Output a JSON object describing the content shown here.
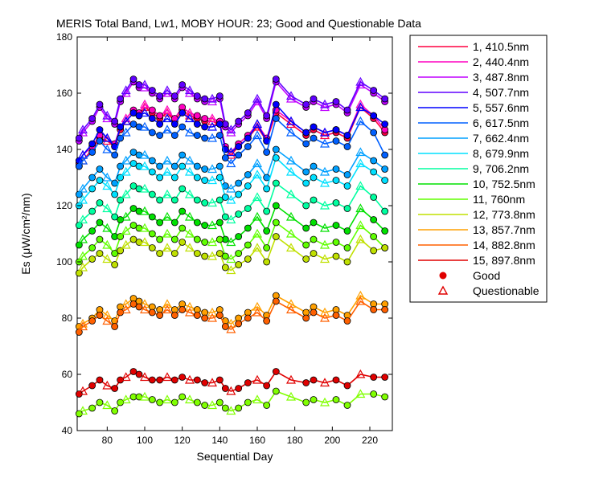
{
  "chart_data": {
    "type": "line",
    "title": "MERIS Total Band,  Lw1, MOBY HOUR: 23;  Good and Questionable Data",
    "xlabel": "Sequential Day",
    "ylabel": "Es (μW/cm²/nm)",
    "xlim": [
      64,
      232
    ],
    "ylim": [
      40,
      180
    ],
    "xticks": [
      80,
      100,
      120,
      140,
      160,
      180,
      200,
      220
    ],
    "yticks": [
      40,
      60,
      80,
      100,
      120,
      140,
      160,
      180
    ],
    "grid": false,
    "legend_position": "outside-right",
    "x": [
      65,
      67,
      72,
      76,
      80,
      84,
      87,
      90,
      94,
      97,
      100,
      104,
      108,
      112,
      116,
      120,
      124,
      128,
      132,
      136,
      140,
      143,
      146,
      150,
      155,
      160,
      165,
      170,
      178,
      186,
      190,
      196,
      202,
      208,
      215,
      222,
      228
    ],
    "series": [
      {
        "name": "1, 410.5nm",
        "color": "#ff0040",
        "values": [
          134,
          136,
          140,
          144,
          143,
          141,
          147,
          150,
          153,
          152,
          155,
          153,
          151,
          153,
          150,
          154,
          152,
          151,
          150,
          150,
          149,
          140,
          138,
          141,
          144,
          148,
          143,
          153,
          149,
          145,
          147,
          145,
          146,
          144,
          155,
          151,
          146
        ]
      },
      {
        "name": "2, 440.4nm",
        "color": "#ff00c0",
        "values": [
          135,
          138,
          141,
          145,
          144,
          142,
          148,
          151,
          154,
          153,
          156,
          154,
          152,
          154,
          151,
          155,
          153,
          152,
          151,
          151,
          150,
          141,
          139,
          142,
          145,
          149,
          144,
          154,
          150,
          146,
          148,
          146,
          147,
          145,
          156,
          152,
          147
        ]
      },
      {
        "name": "3, 487.8nm",
        "color": "#c000ff",
        "values": [
          143,
          146,
          150,
          155,
          151,
          149,
          157,
          160,
          164,
          162,
          162,
          160,
          158,
          160,
          158,
          162,
          160,
          158,
          157,
          157,
          158,
          148,
          146,
          149,
          152,
          157,
          151,
          164,
          158,
          155,
          157,
          155,
          156,
          153,
          163,
          160,
          157
        ]
      },
      {
        "name": "4, 507.7nm",
        "color": "#6000ff",
        "values": [
          144,
          147,
          151,
          156,
          152,
          150,
          158,
          161,
          165,
          163,
          163,
          161,
          159,
          161,
          159,
          163,
          161,
          159,
          158,
          158,
          159,
          149,
          147,
          150,
          153,
          158,
          152,
          165,
          159,
          156,
          158,
          156,
          157,
          154,
          164,
          161,
          158
        ]
      },
      {
        "name": "5, 557.6nm",
        "color": "#0000ff",
        "values": [
          136,
          138,
          142,
          147,
          144,
          141,
          148,
          150,
          153,
          152,
          153,
          151,
          149,
          151,
          149,
          153,
          151,
          149,
          148,
          148,
          149,
          140,
          139,
          141,
          144,
          149,
          143,
          156,
          150,
          146,
          148,
          146,
          147,
          145,
          155,
          152,
          149
        ]
      },
      {
        "name": "6, 617.5nm",
        "color": "#0060ff",
        "values": [
          134,
          136,
          139,
          143,
          140,
          138,
          144,
          146,
          149,
          148,
          148,
          146,
          145,
          147,
          145,
          148,
          146,
          145,
          144,
          144,
          145,
          137,
          135,
          138,
          141,
          145,
          139,
          151,
          146,
          142,
          144,
          142,
          143,
          141,
          150,
          146,
          138
        ]
      },
      {
        "name": "7, 662.4nm",
        "color": "#00a0ff",
        "values": [
          124,
          126,
          130,
          133,
          130,
          128,
          134,
          136,
          139,
          138,
          138,
          136,
          134,
          136,
          134,
          138,
          136,
          134,
          133,
          133,
          134,
          127,
          126,
          128,
          131,
          135,
          130,
          140,
          136,
          132,
          134,
          132,
          133,
          131,
          139,
          136,
          133
        ]
      },
      {
        "name": "8, 679.9nm",
        "color": "#00e0ff",
        "values": [
          120,
          122,
          126,
          129,
          127,
          124,
          130,
          132,
          135,
          134,
          134,
          132,
          130,
          132,
          130,
          134,
          132,
          130,
          129,
          129,
          130,
          123,
          122,
          124,
          127,
          131,
          126,
          137,
          132,
          128,
          130,
          128,
          129,
          127,
          135,
          132,
          129
        ]
      },
      {
        "name": "9, 706.2nm",
        "color": "#00ffa0",
        "values": [
          113,
          115,
          118,
          121,
          119,
          116,
          122,
          124,
          127,
          126,
          126,
          124,
          122,
          124,
          122,
          126,
          124,
          122,
          121,
          121,
          122,
          116,
          115,
          117,
          119,
          123,
          118,
          128,
          124,
          120,
          122,
          120,
          121,
          119,
          127,
          123,
          118
        ]
      },
      {
        "name": "10, 752.5nm",
        "color": "#00e000",
        "values": [
          106,
          108,
          111,
          114,
          112,
          109,
          115,
          116,
          119,
          118,
          118,
          116,
          114,
          116,
          114,
          118,
          116,
          114,
          113,
          113,
          114,
          108,
          107,
          109,
          112,
          116,
          111,
          120,
          116,
          112,
          114,
          112,
          113,
          111,
          119,
          115,
          111
        ]
      },
      {
        "name": "11,   760nm",
        "color": "#60ff00",
        "values": [
          100,
          102,
          105,
          108,
          106,
          103,
          109,
          111,
          113,
          112,
          112,
          110,
          108,
          110,
          108,
          112,
          110,
          108,
          107,
          107,
          108,
          102,
          101,
          103,
          106,
          110,
          105,
          114,
          110,
          106,
          108,
          106,
          107,
          105,
          113,
          109,
          105
        ]
      },
      {
        "name": "12, 773.8nm",
        "color": "#c0e000",
        "values": [
          96,
          98,
          101,
          103,
          101,
          99,
          104,
          106,
          108,
          107,
          107,
          105,
          103,
          105,
          103,
          107,
          105,
          103,
          102,
          102,
          103,
          98,
          97,
          99,
          101,
          105,
          100,
          109,
          105,
          101,
          103,
          101,
          102,
          100,
          108,
          104,
          105
        ]
      },
      {
        "name": "13, 857.7nm",
        "color": "#ffa000",
        "values": [
          77,
          78,
          80,
          83,
          81,
          79,
          84,
          85,
          87,
          86,
          85,
          84,
          83,
          85,
          83,
          85,
          84,
          83,
          82,
          82,
          83,
          79,
          78,
          80,
          82,
          84,
          81,
          88,
          85,
          82,
          84,
          82,
          83,
          81,
          88,
          85,
          85
        ]
      },
      {
        "name": "14, 882.8nm",
        "color": "#ff6000",
        "values": [
          75,
          77,
          79,
          81,
          79,
          77,
          82,
          83,
          85,
          84,
          83,
          82,
          81,
          83,
          81,
          83,
          82,
          81,
          80,
          80,
          81,
          77,
          76,
          78,
          80,
          82,
          79,
          86,
          83,
          80,
          82,
          80,
          81,
          79,
          86,
          83,
          83
        ]
      },
      {
        "name": "15, 897.8nm",
        "color": "#e00000",
        "values": [
          53,
          54,
          56,
          58,
          56,
          55,
          58,
          59,
          61,
          60,
          59,
          58,
          58,
          59,
          58,
          59,
          58,
          58,
          57,
          57,
          58,
          55,
          54,
          55,
          57,
          58,
          56,
          61,
          58,
          57,
          58,
          57,
          58,
          56,
          60,
          59,
          59
        ]
      },
      {
        "name": "",
        "color": "#80ff00",
        "values": [
          46,
          47,
          48,
          50,
          49,
          47,
          50,
          51,
          52,
          52,
          52,
          51,
          50,
          51,
          50,
          52,
          51,
          50,
          49,
          49,
          50,
          48,
          47,
          48,
          50,
          51,
          49,
          54,
          52,
          50,
          51,
          50,
          51,
          49,
          53,
          53,
          52
        ]
      }
    ],
    "markers": {
      "good": "filled circle",
      "questionable": "open triangle"
    },
    "legend": {
      "markers": [
        {
          "label": "Good",
          "symbol": "circle"
        },
        {
          "label": "Questionable",
          "symbol": "triangle"
        }
      ]
    }
  }
}
